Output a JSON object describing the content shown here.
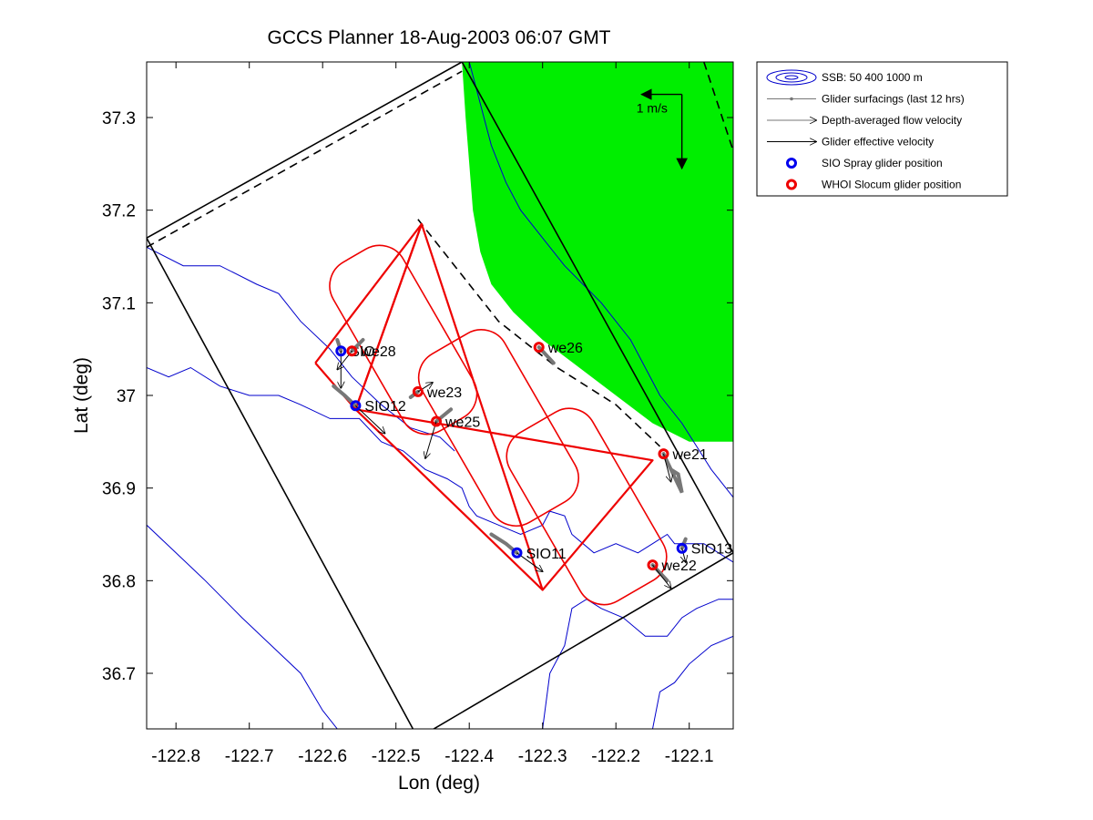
{
  "chart_data": {
    "type": "map",
    "title": "GCCS Planner 18-Aug-2003 06:07 GMT",
    "xlabel": "Lon (deg)",
    "ylabel": "Lat (deg)",
    "xlim": [
      -122.84,
      -122.04
    ],
    "ylim": [
      36.64,
      37.36
    ],
    "xticks": [
      {
        "value": -122.8,
        "label": "-122.8"
      },
      {
        "value": -122.7,
        "label": "-122.7"
      },
      {
        "value": -122.6,
        "label": "-122.6"
      },
      {
        "value": -122.5,
        "label": "-122.5"
      },
      {
        "value": -122.4,
        "label": "-122.4"
      },
      {
        "value": -122.3,
        "label": "-122.3"
      },
      {
        "value": -122.2,
        "label": "-122.2"
      },
      {
        "value": -122.1,
        "label": "-122.1"
      }
    ],
    "yticks": [
      {
        "value": 36.7,
        "label": "36.7"
      },
      {
        "value": 36.8,
        "label": "36.8"
      },
      {
        "value": 36.9,
        "label": "36.9"
      },
      {
        "value": 37.0,
        "label": "37"
      },
      {
        "value": 37.1,
        "label": "37.1"
      },
      {
        "value": 37.2,
        "label": "37.2"
      },
      {
        "value": 37.3,
        "label": "37.3"
      }
    ],
    "colors": {
      "land": "#00ee00",
      "bathymetry": "#0000cc",
      "tracks": "#ee0000",
      "spray": "#0000ee",
      "slocum": "#ee0000",
      "surfacing": "#777777",
      "vectors": "#000000"
    },
    "land_polygon": [
      [
        -122.41,
        37.36
      ],
      [
        -122.04,
        37.36
      ],
      [
        -122.04,
        36.95
      ],
      [
        -122.1,
        36.95
      ],
      [
        -122.15,
        36.97
      ],
      [
        -122.2,
        37.0
      ],
      [
        -122.25,
        37.03
      ],
      [
        -122.3,
        37.06
      ],
      [
        -122.34,
        37.09
      ],
      [
        -122.37,
        37.12
      ],
      [
        -122.385,
        37.155
      ],
      [
        -122.395,
        37.2
      ],
      [
        -122.4,
        37.25
      ],
      [
        -122.405,
        37.3
      ]
    ],
    "domain_box": [
      [
        -122.84,
        37.17
      ],
      [
        -122.41,
        37.36
      ],
      [
        -122.04,
        36.83
      ],
      [
        -122.47,
        36.63
      ]
    ],
    "dashed_lines": [
      [
        [
          -122.84,
          37.16
        ],
        [
          -122.41,
          37.35
        ]
      ],
      [
        [
          -122.08,
          37.36
        ],
        [
          -122.03,
          37.24
        ]
      ],
      [
        [
          -122.47,
          37.19
        ],
        [
          -122.42,
          37.14
        ],
        [
          -122.36,
          37.08
        ],
        [
          -122.28,
          37.03
        ],
        [
          -122.2,
          36.99
        ],
        [
          -122.14,
          36.945
        ]
      ]
    ],
    "isobaths": [
      [
        [
          -122.84,
          37.16
        ],
        [
          -122.79,
          37.14
        ],
        [
          -122.74,
          37.14
        ],
        [
          -122.69,
          37.12
        ],
        [
          -122.66,
          37.11
        ],
        [
          -122.63,
          37.08
        ],
        [
          -122.59,
          37.05
        ],
        [
          -122.56,
          37.02
        ],
        [
          -122.52,
          36.99
        ],
        [
          -122.48,
          36.965
        ],
        [
          -122.44,
          36.955
        ],
        [
          -122.42,
          36.94
        ]
      ],
      [
        [
          -122.84,
          37.03
        ],
        [
          -122.81,
          37.02
        ],
        [
          -122.78,
          37.03
        ],
        [
          -122.74,
          37.01
        ],
        [
          -122.7,
          37.0
        ],
        [
          -122.66,
          37.0
        ],
        [
          -122.63,
          36.99
        ],
        [
          -122.59,
          36.975
        ],
        [
          -122.55,
          36.975
        ],
        [
          -122.52,
          36.95
        ],
        [
          -122.49,
          36.94
        ],
        [
          -122.46,
          36.92
        ],
        [
          -122.43,
          36.91
        ],
        [
          -122.41,
          36.9
        ],
        [
          -122.4,
          36.88
        ],
        [
          -122.39,
          36.87
        ],
        [
          -122.36,
          36.86
        ],
        [
          -122.33,
          36.85
        ],
        [
          -122.3,
          36.86
        ],
        [
          -122.29,
          36.875
        ],
        [
          -122.27,
          36.87
        ],
        [
          -122.26,
          36.85
        ],
        [
          -122.23,
          36.83
        ],
        [
          -122.2,
          36.84
        ],
        [
          -122.17,
          36.83
        ],
        [
          -122.15,
          36.84
        ],
        [
          -122.13,
          36.85
        ],
        [
          -122.12,
          36.84
        ],
        [
          -122.08,
          36.84
        ],
        [
          -122.04,
          36.82
        ]
      ],
      [
        [
          -122.4,
          37.36
        ],
        [
          -122.39,
          37.33
        ],
        [
          -122.38,
          37.3
        ],
        [
          -122.37,
          37.27
        ],
        [
          -122.35,
          37.23
        ],
        [
          -122.33,
          37.2
        ],
        [
          -122.3,
          37.17
        ],
        [
          -122.27,
          37.14
        ],
        [
          -122.22,
          37.1
        ],
        [
          -122.18,
          37.06
        ],
        [
          -122.14,
          37.0
        ],
        [
          -122.11,
          36.97
        ],
        [
          -122.07,
          36.92
        ],
        [
          -122.04,
          36.89
        ]
      ],
      [
        [
          -122.84,
          36.86
        ],
        [
          -122.8,
          36.83
        ],
        [
          -122.76,
          36.8
        ],
        [
          -122.71,
          36.76
        ],
        [
          -122.67,
          36.73
        ],
        [
          -122.63,
          36.7
        ],
        [
          -122.6,
          36.66
        ],
        [
          -122.58,
          36.64
        ]
      ],
      [
        [
          -122.3,
          36.64
        ],
        [
          -122.29,
          36.7
        ],
        [
          -122.27,
          36.73
        ],
        [
          -122.26,
          36.77
        ],
        [
          -122.24,
          36.78
        ],
        [
          -122.22,
          36.77
        ],
        [
          -122.19,
          36.76
        ],
        [
          -122.16,
          36.74
        ],
        [
          -122.13,
          36.74
        ],
        [
          -122.11,
          36.76
        ],
        [
          -122.09,
          36.77
        ],
        [
          -122.06,
          36.78
        ],
        [
          -122.04,
          36.78
        ]
      ],
      [
        [
          -122.04,
          36.74
        ],
        [
          -122.07,
          36.73
        ],
        [
          -122.1,
          36.71
        ],
        [
          -122.12,
          36.69
        ],
        [
          -122.14,
          36.68
        ],
        [
          -122.15,
          36.64
        ]
      ]
    ],
    "tracks": [
      [
        [
          -122.61,
          37.035
        ],
        [
          -122.465,
          37.185
        ],
        [
          -122.555,
          36.985
        ],
        [
          -122.61,
          37.035
        ]
      ],
      [
        [
          -122.555,
          36.985
        ],
        [
          -122.465,
          37.185
        ],
        [
          -122.3,
          36.79
        ],
        [
          -122.15,
          36.93
        ],
        [
          -122.555,
          36.985
        ]
      ],
      [
        [
          -122.555,
          36.985
        ],
        [
          -122.3,
          36.79
        ]
      ]
    ],
    "track_loops": [
      {
        "center": [
          -122.49,
          37.06
        ],
        "half_width": 0.055,
        "half_height": 0.105,
        "angle_deg": -30
      },
      {
        "center": [
          -122.36,
          36.965
        ],
        "half_width": 0.065,
        "half_height": 0.105,
        "angle_deg": -30
      },
      {
        "center": [
          -122.24,
          36.88
        ],
        "half_width": 0.065,
        "half_height": 0.105,
        "angle_deg": -30
      }
    ],
    "gliders": [
      {
        "name": "SIO12",
        "type": "spray",
        "lon": -122.555,
        "lat": 36.989,
        "trail": [
          [
            -122.585,
            37.01
          ],
          [
            -122.57,
            37.0
          ],
          [
            -122.555,
            36.989
          ]
        ],
        "vector": [
          0.04,
          -0.03
        ],
        "label": "SIO12"
      },
      {
        "name": "SIO11",
        "type": "spray",
        "lon": -122.335,
        "lat": 36.83,
        "trail": [
          [
            -122.37,
            36.85
          ],
          [
            -122.35,
            36.84
          ],
          [
            -122.335,
            36.83
          ]
        ],
        "vector": [
          0.035,
          -0.02
        ],
        "label": "SIO11"
      },
      {
        "name": "SIO13",
        "type": "spray",
        "lon": -122.11,
        "lat": 36.835,
        "trail": [
          [
            -122.105,
            36.845
          ],
          [
            -122.11,
            36.835
          ]
        ],
        "vector": [
          0.005,
          -0.015
        ],
        "label": "SIO13"
      },
      {
        "name": "SIO",
        "type": "spray",
        "lon": -122.575,
        "lat": 37.048,
        "trail": [
          [
            -122.58,
            37.06
          ],
          [
            -122.575,
            37.048
          ]
        ],
        "vector": [
          0.0,
          -0.04
        ],
        "label": "SIO"
      },
      {
        "name": "we28",
        "type": "slocum",
        "lon": -122.56,
        "lat": 37.048,
        "trail": [
          [
            -122.545,
            37.06
          ],
          [
            -122.56,
            37.048
          ]
        ],
        "vector": [
          -0.02,
          -0.02
        ],
        "label": "we28"
      },
      {
        "name": "we23",
        "type": "slocum",
        "lon": -122.47,
        "lat": 37.004,
        "trail": [
          [
            -122.48,
            36.998
          ],
          [
            -122.47,
            37.004
          ]
        ],
        "vector": [
          0.02,
          0.01
        ],
        "label": "we23"
      },
      {
        "name": "we25",
        "type": "slocum",
        "lon": -122.445,
        "lat": 36.972,
        "trail": [
          [
            -122.425,
            36.985
          ],
          [
            -122.445,
            36.972
          ]
        ],
        "vector": [
          -0.015,
          -0.04
        ],
        "label": "we25"
      },
      {
        "name": "we26",
        "type": "slocum",
        "lon": -122.305,
        "lat": 37.052,
        "trail": [
          [
            -122.285,
            37.035
          ],
          [
            -122.305,
            37.052
          ]
        ],
        "vector": [
          0.0,
          0.0
        ],
        "label": "we26"
      },
      {
        "name": "we21",
        "type": "slocum",
        "lon": -122.135,
        "lat": 36.937,
        "trail": [
          [
            -122.125,
            36.92
          ],
          [
            -122.115,
            36.915
          ],
          [
            -122.11,
            36.895
          ],
          [
            -122.135,
            36.937
          ]
        ],
        "vector": [
          0.01,
          -0.03
        ],
        "label": "we21"
      },
      {
        "name": "we22",
        "type": "slocum",
        "lon": -122.15,
        "lat": 36.817,
        "trail": [
          [
            -122.13,
            36.8
          ],
          [
            -122.15,
            36.817
          ]
        ],
        "vector": [
          0.025,
          -0.025
        ],
        "label": "we22"
      }
    ],
    "scale_arrow": {
      "label": "1 m/s",
      "origin": [
        -122.11,
        37.325
      ],
      "west_tip": [
        -122.165,
        37.325
      ],
      "south_tip": [
        -122.11,
        37.245
      ]
    },
    "legend": {
      "placement": "right",
      "entries": [
        {
          "symbol": "ellipses",
          "label": "SSB: 50   400  1000 m"
        },
        {
          "symbol": "surfacing",
          "label": "Glider surfacings (last 12 hrs)"
        },
        {
          "symbol": "thin-arrow",
          "label": "Depth-averaged flow velocity"
        },
        {
          "symbol": "arrow",
          "label": "Glider effective velocity"
        },
        {
          "symbol": "blue-circle",
          "label": "SIO Spray glider position"
        },
        {
          "symbol": "red-circle",
          "label": "WHOI Slocum glider position"
        }
      ]
    }
  }
}
